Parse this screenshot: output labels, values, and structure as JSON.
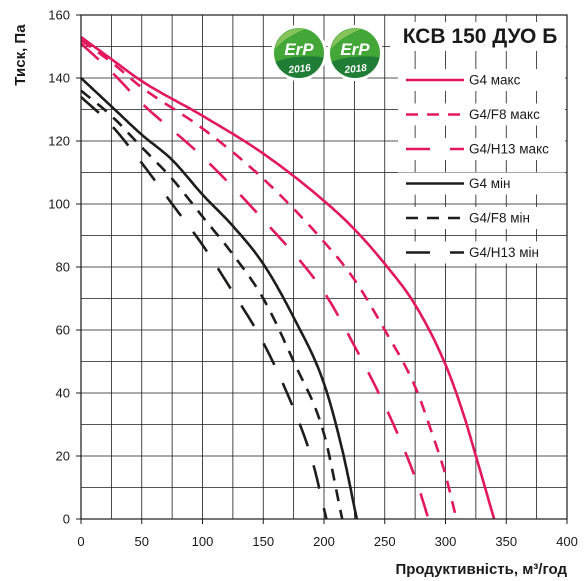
{
  "chart_data": {
    "type": "line",
    "title": "КСВ 150 ДУО Б",
    "xlabel": "Продуктивність, м³/год",
    "ylabel": "Тиск, Па",
    "xlim": [
      0,
      400
    ],
    "ylim": [
      0,
      160
    ],
    "x_ticks": [
      0,
      50,
      100,
      150,
      200,
      250,
      300,
      350,
      400
    ],
    "y_ticks": [
      0,
      20,
      40,
      60,
      80,
      100,
      120,
      140,
      160
    ],
    "grid": true,
    "legend_position": "top-right",
    "series": [
      {
        "name": "G4 макс",
        "color": "#e3175b",
        "line_style": "solid",
        "points": [
          [
            0,
            153
          ],
          [
            25,
            146
          ],
          [
            50,
            139
          ],
          [
            100,
            128
          ],
          [
            150,
            116
          ],
          [
            200,
            101
          ],
          [
            225,
            92
          ],
          [
            250,
            81
          ],
          [
            275,
            68
          ],
          [
            300,
            49
          ],
          [
            315,
            33
          ],
          [
            325,
            20
          ],
          [
            340,
            0
          ]
        ]
      },
      {
        "name": "G4/F8 макс",
        "color": "#e3175b",
        "line_style": "dashed",
        "points": [
          [
            0,
            152
          ],
          [
            25,
            145
          ],
          [
            50,
            137
          ],
          [
            100,
            124
          ],
          [
            150,
            108
          ],
          [
            200,
            88
          ],
          [
            225,
            76
          ],
          [
            250,
            60
          ],
          [
            275,
            42
          ],
          [
            290,
            26
          ],
          [
            300,
            14
          ],
          [
            309,
            0
          ]
        ]
      },
      {
        "name": "G4/H13 макс",
        "color": "#e3175b",
        "line_style": "long-dashed",
        "points": [
          [
            0,
            151
          ],
          [
            25,
            142
          ],
          [
            50,
            132
          ],
          [
            100,
            115
          ],
          [
            150,
            95
          ],
          [
            200,
            72
          ],
          [
            225,
            55
          ],
          [
            250,
            36
          ],
          [
            265,
            23
          ],
          [
            277,
            11
          ],
          [
            286,
            0
          ]
        ]
      },
      {
        "name": "G4 мін",
        "color": "#1d1d1b",
        "line_style": "solid",
        "points": [
          [
            0,
            140
          ],
          [
            25,
            131
          ],
          [
            50,
            122
          ],
          [
            75,
            114
          ],
          [
            100,
            103
          ],
          [
            125,
            93
          ],
          [
            150,
            81
          ],
          [
            175,
            64
          ],
          [
            200,
            43
          ],
          [
            215,
            22
          ],
          [
            227,
            0
          ]
        ]
      },
      {
        "name": "G4/F8 мін",
        "color": "#1d1d1b",
        "line_style": "dashed",
        "points": [
          [
            0,
            136
          ],
          [
            25,
            128
          ],
          [
            50,
            118
          ],
          [
            75,
            108
          ],
          [
            100,
            96
          ],
          [
            125,
            84
          ],
          [
            150,
            70
          ],
          [
            175,
            50
          ],
          [
            200,
            27
          ],
          [
            215,
            0
          ]
        ]
      },
      {
        "name": "G4/H13 мін",
        "color": "#1d1d1b",
        "line_style": "long-dashed",
        "points": [
          [
            0,
            134
          ],
          [
            25,
            125
          ],
          [
            50,
            113
          ],
          [
            75,
            100
          ],
          [
            100,
            87
          ],
          [
            125,
            72
          ],
          [
            150,
            56
          ],
          [
            175,
            35
          ],
          [
            190,
            19
          ],
          [
            202,
            0
          ]
        ]
      }
    ]
  },
  "badges": [
    {
      "label": "ErP",
      "year": "2016"
    },
    {
      "label": "ErP",
      "year": "2018"
    }
  ],
  "colors": {
    "badge_green": "#43a738",
    "badge_light": "#86c35a",
    "badge_band": "#1f7d35"
  }
}
